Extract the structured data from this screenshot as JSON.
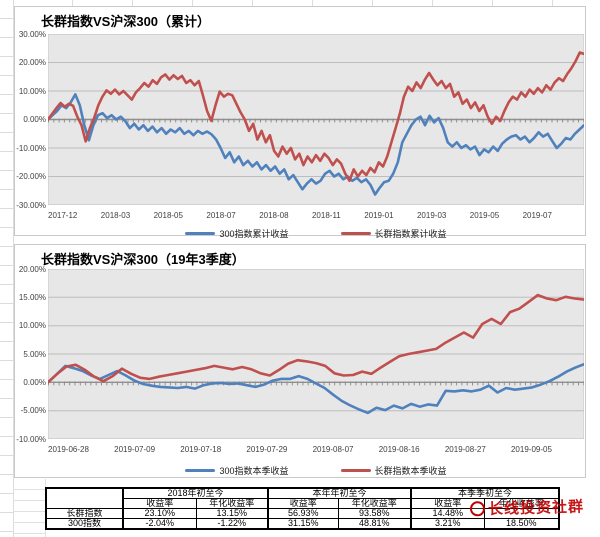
{
  "chart_data": [
    {
      "type": "line",
      "title": "长群指数VS沪深300（累计）",
      "ylim": [
        -30,
        30
      ],
      "grid": true,
      "legend_position": "bottom",
      "y_ticks": [
        "30.00%",
        "20.00%",
        "10.00%",
        "0.00%",
        "-10.00%",
        "-20.00%",
        "-30.00%"
      ],
      "x_ticks": [
        "2017-12",
        "2018-03",
        "2018-05",
        "2018-07",
        "2018-08",
        "2018-11",
        "2019-01",
        "2019-03",
        "2019-05",
        "2019-07"
      ],
      "series": [
        {
          "name": "300指数累计收益",
          "color": "#4F81BD",
          "values": [
            0,
            1.5,
            3,
            5,
            4,
            6,
            8.8,
            5,
            -2,
            -7.3,
            -2,
            1.5,
            2.2,
            0.5,
            1.5,
            0,
            1,
            -0.5,
            -3,
            -1.5,
            -3.5,
            -2,
            -4,
            -2.5,
            -4.5,
            -3,
            -5,
            -3.5,
            -4.5,
            -3,
            -5,
            -4,
            -5.5,
            -4,
            -5,
            -4.2,
            -5.2,
            -7,
            -10,
            -13.5,
            -11.5,
            -15,
            -13,
            -16,
            -14.5,
            -16.5,
            -15,
            -17.5,
            -16,
            -18,
            -16.5,
            -19,
            -17.5,
            -21,
            -19.5,
            -22,
            -24.5,
            -22.5,
            -21,
            -22.5,
            -21.5,
            -19,
            -18,
            -20,
            -19,
            -21,
            -20,
            -21.5,
            -20.5,
            -22,
            -21,
            -23,
            -26.3,
            -24,
            -22,
            -21.5,
            -19,
            -15,
            -8,
            -5,
            -2,
            0,
            1,
            -2,
            1.3,
            -1,
            0.5,
            -3,
            -8,
            -9.5,
            -8,
            -10,
            -9,
            -10.5,
            -9.5,
            -12.5,
            -10.5,
            -11.5,
            -9.5,
            -11,
            -8.5,
            -7,
            -6,
            -5.5,
            -7,
            -6,
            -8,
            -6.5,
            -4.5,
            -6,
            -5,
            -7.5,
            -10,
            -8.5,
            -6.5,
            -7,
            -5,
            -3.5,
            -2
          ]
        },
        {
          "name": "长群指数累计收益",
          "color": "#C0504D",
          "values": [
            0,
            2,
            4,
            5.8,
            4.5,
            5.5,
            4.8,
            1,
            -2,
            -7.7,
            -3,
            0.5,
            5,
            8,
            10.2,
            9,
            10.5,
            8.8,
            10,
            8.5,
            7,
            9.5,
            11,
            12.8,
            11.5,
            13.8,
            12.5,
            14.8,
            15.8,
            14,
            15.5,
            14.2,
            15.3,
            12.8,
            13.8,
            12,
            13.5,
            8.5,
            3,
            -0.5,
            5,
            9.8,
            8,
            9,
            8.5,
            5.5,
            2.5,
            0,
            -4,
            -1.5,
            -7,
            -4,
            -8,
            -5.5,
            -11,
            -13,
            -9.5,
            -12,
            -10,
            -14,
            -12,
            -16,
            -13,
            -15,
            -12.5,
            -14.5,
            -12,
            -13.5,
            -16,
            -14,
            -15.5,
            -19,
            -21.5,
            -17.5,
            -20,
            -18,
            -19.5,
            -17,
            -18.5,
            -15,
            -16.5,
            -13,
            -8,
            -3,
            2,
            8,
            11.5,
            10,
            13,
            11,
            14,
            16.3,
            14,
            12,
            13.5,
            11,
            12.5,
            8,
            9.5,
            5.5,
            7,
            4,
            6,
            3,
            5,
            1,
            -1.5,
            1,
            -0.5,
            3,
            6,
            8,
            7,
            9.5,
            8,
            10.5,
            9,
            11,
            9.5,
            12,
            10.5,
            13,
            14.5,
            13.5,
            16,
            18,
            20.5,
            23.5,
            23
          ]
        }
      ]
    },
    {
      "type": "line",
      "title": "长群指数VS沪深300（19年3季度）",
      "ylim": [
        -10,
        20
      ],
      "grid": true,
      "legend_position": "bottom",
      "y_ticks": [
        "20.00%",
        "15.00%",
        "10.00%",
        "5.00%",
        "0.00%",
        "-5.00%",
        "-10.00%"
      ],
      "x_ticks": [
        "2019-06-28",
        "2019-07-09",
        "2019-07-18",
        "2019-07-29",
        "2019-08-07",
        "2019-08-16",
        "2019-08-27",
        "2019-09-05"
      ],
      "series": [
        {
          "name": "300指数本季收益",
          "color": "#4F81BD",
          "values": [
            0,
            1.4,
            2.9,
            2.5,
            2.0,
            1.2,
            0.6,
            1.3,
            2.0,
            1.2,
            0.3,
            -0.3,
            -0.6,
            -0.8,
            -0.9,
            -1.0,
            -0.8,
            -1.1,
            -0.5,
            -0.2,
            -0.1,
            -0.3,
            -0.2,
            -0.5,
            -0.8,
            -0.4,
            0.3,
            0.6,
            0.6,
            1.1,
            0.6,
            -0.2,
            -1.0,
            -2.2,
            -3.3,
            -4.1,
            -4.8,
            -5.4,
            -4.5,
            -4.9,
            -4.1,
            -4.6,
            -3.8,
            -4.3,
            -3.9,
            -4.1,
            -1.5,
            -1.6,
            -1.4,
            -1.6,
            -1.3,
            -0.6,
            -1.8,
            -1.0,
            -1.3,
            -1.1,
            -0.9,
            -0.4,
            0.2,
            1.0,
            1.9,
            2.6,
            3.2
          ]
        },
        {
          "name": "长群指数本季收益",
          "color": "#C0504D",
          "values": [
            0,
            1.5,
            2.8,
            3.1,
            2.2,
            1.0,
            0.2,
            1.1,
            2.4,
            1.5,
            0.8,
            0.6,
            1.0,
            1.3,
            1.6,
            1.9,
            2.2,
            2.5,
            2.9,
            2.6,
            2.3,
            2.7,
            2.3,
            1.6,
            1.2,
            2.2,
            3.3,
            3.9,
            3.7,
            3.4,
            2.9,
            1.6,
            1.2,
            1.3,
            1.9,
            1.5,
            2.6,
            3.6,
            4.6,
            5.0,
            5.3,
            5.6,
            5.9,
            7.0,
            7.9,
            8.8,
            7.9,
            10.3,
            11.2,
            10.3,
            12.4,
            13.0,
            14.2,
            15.4,
            14.8,
            14.5,
            15.1,
            14.8,
            14.6
          ]
        }
      ]
    }
  ],
  "table": {
    "corner": "",
    "groups": [
      {
        "label": "2018年初至今",
        "cols": [
          "收益率",
          "年化收益率"
        ]
      },
      {
        "label": "本年年初至今",
        "cols": [
          "收益率",
          "年化收益率"
        ]
      },
      {
        "label": "本季季初至今",
        "cols": [
          "收益率",
          "年化收益率"
        ]
      }
    ],
    "rows": [
      {
        "label": "长群指数",
        "values": [
          "23.10%",
          "13.15%",
          "56.93%",
          "93.58%",
          "14.48%",
          ""
        ]
      },
      {
        "label": "300指数",
        "values": [
          "-2.04%",
          "-1.22%",
          "31.15%",
          "48.81%",
          "3.21%",
          "18.50%"
        ]
      }
    ]
  },
  "watermark": {
    "text": "长线投资社群",
    "color": "#C00000"
  },
  "colors": {
    "plot_background": "#E7E7E7",
    "gridline": "#BDBDBD",
    "axis_line": "#8F8F8F",
    "series_blue": "#4F81BD",
    "series_red": "#C0504D"
  }
}
